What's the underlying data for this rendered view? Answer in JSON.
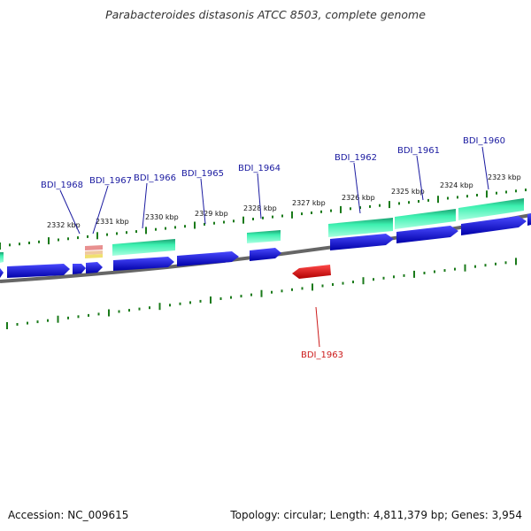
{
  "title": "Parabacteroides distasonis ATCC 8503, complete genome",
  "footer": {
    "accession": "Accession: NC_009615",
    "summary": "Topology: circular; Length: 4,811,379 bp; Genes: 3,954"
  },
  "colors": {
    "backbone": "#8a8a8a",
    "tick": "#1a7a1a",
    "gene_forward": "#1a1ae6",
    "gene_reverse": "#e61a1a",
    "label_forward": "#1a1aa0",
    "label_reverse": "#cc1a1a",
    "rna_green": "#2ee8a0",
    "rna_pink": "#e8a0a0",
    "rna_yellow": "#f0e060"
  },
  "scale_labels": [
    "2332 kbp",
    "2331 kbp",
    "2330 kbp",
    "2329 kbp",
    "2328 kbp",
    "2327 kbp",
    "2326 kbp",
    "2325 kbp",
    "2324 kbp",
    "2323 kbp"
  ],
  "gene_labels": [
    {
      "id": "BDI_1968",
      "strand": "forward"
    },
    {
      "id": "BDI_1967",
      "strand": "forward"
    },
    {
      "id": "BDI_1966",
      "strand": "forward"
    },
    {
      "id": "BDI_1965",
      "strand": "forward"
    },
    {
      "id": "BDI_1964",
      "strand": "forward"
    },
    {
      "id": "BDI_1962",
      "strand": "forward"
    },
    {
      "id": "BDI_1961",
      "strand": "forward"
    },
    {
      "id": "BDI_1960",
      "strand": "forward"
    },
    {
      "id": "BDI_1963",
      "strand": "reverse"
    }
  ]
}
